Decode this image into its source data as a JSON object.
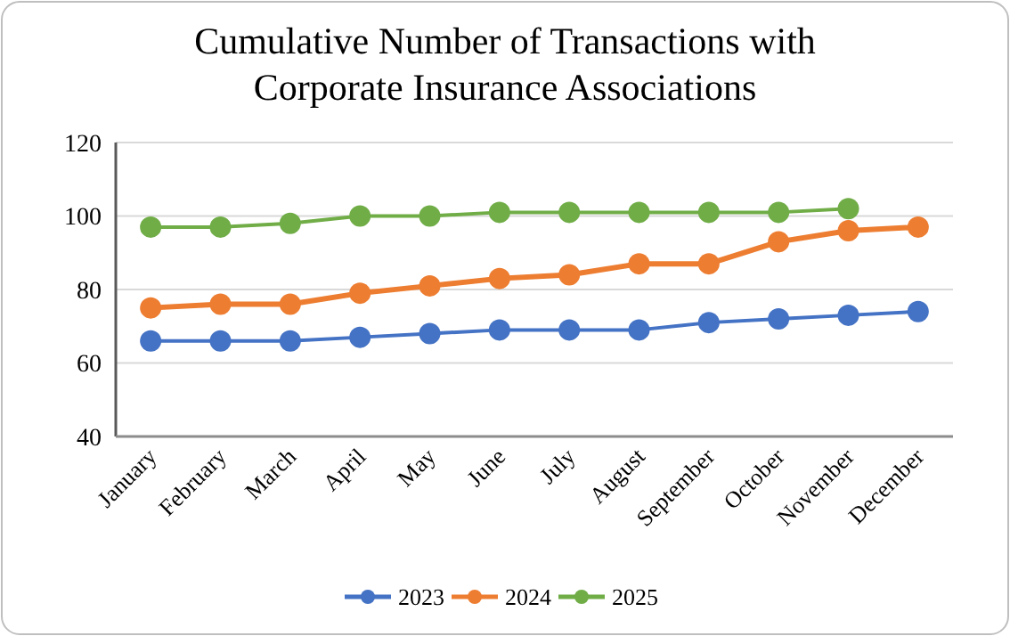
{
  "chart_data": {
    "type": "line",
    "title": "Cumulative Number of Transactions with Corporate Insurance Associations",
    "categories": [
      "January",
      "February",
      "March",
      "April",
      "May",
      "June",
      "July",
      "August",
      "September",
      "October",
      "November",
      "December"
    ],
    "series": [
      {
        "name": "2023",
        "color": "#4472c4",
        "values": [
          66,
          66,
          66,
          67,
          68,
          69,
          69,
          69,
          71,
          72,
          73,
          74
        ]
      },
      {
        "name": "2024",
        "color": "#ed7d31",
        "values": [
          75,
          76,
          76,
          79,
          81,
          83,
          84,
          87,
          87,
          93,
          96,
          97
        ]
      },
      {
        "name": "2025",
        "color": "#70ad47",
        "values": [
          97,
          97,
          98,
          100,
          100,
          101,
          101,
          101,
          101,
          101,
          102,
          null
        ]
      }
    ],
    "ylim": [
      40,
      120
    ],
    "yticks": [
      40,
      60,
      80,
      100,
      120
    ],
    "grid": "y",
    "legend": "bottom",
    "marker": "circle",
    "line_style": "solid"
  }
}
